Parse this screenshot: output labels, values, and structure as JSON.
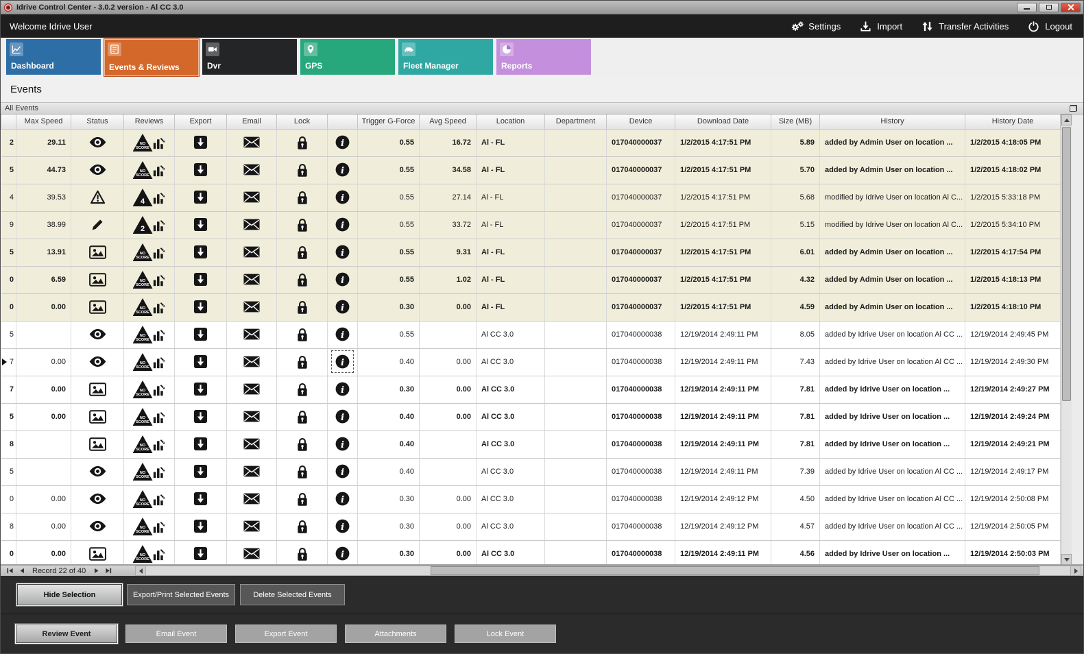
{
  "window": {
    "title": "Idrive Control Center - 3.0.2 version - Al CC 3.0",
    "app_icon": "record-logo-icon"
  },
  "topbar": {
    "welcome": "Welcome Idrive User",
    "actions": [
      {
        "label": "Settings",
        "icon": "gears-icon"
      },
      {
        "label": "Import",
        "icon": "import-icon"
      },
      {
        "label": "Transfer Activities",
        "icon": "transfer-icon"
      },
      {
        "label": "Logout",
        "icon": "power-icon"
      }
    ]
  },
  "tabs": [
    {
      "label": "Dashboard",
      "color": "#2d6ea6",
      "icon": "line-chart-icon",
      "active": false
    },
    {
      "label": "Events & Reviews",
      "color": "#d4682a",
      "icon": "checklist-icon",
      "active": true
    },
    {
      "label": "Dvr",
      "color": "#232526",
      "icon": "dvr-icon",
      "active": false
    },
    {
      "label": "GPS",
      "color": "#27a77c",
      "icon": "map-pin-icon",
      "active": false
    },
    {
      "label": "Fleet Manager",
      "color": "#2fa7a3",
      "icon": "car-icon",
      "active": false
    },
    {
      "label": "Reports",
      "color": "#c48fdc",
      "icon": "pie-chart-icon",
      "active": false
    }
  ],
  "page": {
    "title": "Events",
    "panel_title": "All Events"
  },
  "table": {
    "columns": [
      "",
      "Max Speed",
      "Status",
      "Reviews",
      "Export",
      "Email",
      "Lock",
      "",
      "Trigger G-Force",
      "Avg Speed",
      "Location",
      "Department",
      "Device",
      "Download Date",
      "Size (MB)",
      "History",
      "History Date"
    ],
    "rows": [
      {
        "edge": "2",
        "max_speed": "29.11",
        "status": "eye",
        "review": "NO SCORE",
        "trigger": "0.55",
        "avg_speed": "16.72",
        "location": "Al - FL",
        "department": "",
        "device": "017040000037",
        "download_date": "1/2/2015 4:17:51 PM",
        "size": "5.89",
        "history": "added by Admin User on location ...",
        "history_date": "1/2/2015 4:18:05 PM",
        "bold": true,
        "beige": true,
        "selected": false
      },
      {
        "edge": "5",
        "max_speed": "44.73",
        "status": "eye",
        "review": "NO SCORE",
        "trigger": "0.55",
        "avg_speed": "34.58",
        "location": "Al - FL",
        "department": "",
        "device": "017040000037",
        "download_date": "1/2/2015 4:17:51 PM",
        "size": "5.70",
        "history": "added by Admin User on location ...",
        "history_date": "1/2/2015 4:18:02 PM",
        "bold": true,
        "beige": true,
        "selected": false
      },
      {
        "edge": "4",
        "max_speed": "39.53",
        "status": "warning",
        "review": "4",
        "trigger": "0.55",
        "avg_speed": "27.14",
        "location": "Al - FL",
        "department": "",
        "device": "017040000037",
        "download_date": "1/2/2015 4:17:51 PM",
        "size": "5.68",
        "history": "modified by Idrive User on location Al C...",
        "history_date": "1/2/2015 5:33:18 PM",
        "bold": false,
        "beige": true,
        "selected": false
      },
      {
        "edge": "9",
        "max_speed": "38.99",
        "status": "pencil",
        "review": "2",
        "trigger": "0.55",
        "avg_speed": "33.72",
        "location": "Al - FL",
        "department": "",
        "device": "017040000037",
        "download_date": "1/2/2015 4:17:51 PM",
        "size": "5.15",
        "history": "modified by Idrive User on location Al C...",
        "history_date": "1/2/2015 5:34:10 PM",
        "bold": false,
        "beige": true,
        "selected": false
      },
      {
        "edge": "5",
        "max_speed": "13.91",
        "status": "image",
        "review": "NO SCORE",
        "trigger": "0.55",
        "avg_speed": "9.31",
        "location": "Al - FL",
        "department": "",
        "device": "017040000037",
        "download_date": "1/2/2015 4:17:51 PM",
        "size": "6.01",
        "history": "added by Admin User on location ...",
        "history_date": "1/2/2015 4:17:54 PM",
        "bold": true,
        "beige": true,
        "selected": false
      },
      {
        "edge": "0",
        "max_speed": "6.59",
        "status": "image",
        "review": "NO SCORE",
        "trigger": "0.55",
        "avg_speed": "1.02",
        "location": "Al - FL",
        "department": "",
        "device": "017040000037",
        "download_date": "1/2/2015 4:17:51 PM",
        "size": "4.32",
        "history": "added by Admin User on location ...",
        "history_date": "1/2/2015 4:18:13 PM",
        "bold": true,
        "beige": true,
        "selected": false
      },
      {
        "edge": "0",
        "max_speed": "0.00",
        "status": "image",
        "review": "NO SCORE",
        "trigger": "0.30",
        "avg_speed": "0.00",
        "location": "Al - FL",
        "department": "",
        "device": "017040000037",
        "download_date": "1/2/2015 4:17:51 PM",
        "size": "4.59",
        "history": "added by Admin User on location ...",
        "history_date": "1/2/2015 4:18:10 PM",
        "bold": true,
        "beige": true,
        "selected": false
      },
      {
        "edge": "5",
        "max_speed": "",
        "status": "eye",
        "review": "NO SCORE",
        "trigger": "0.55",
        "avg_speed": "",
        "location": "Al CC 3.0",
        "department": "",
        "device": "017040000038",
        "download_date": "12/19/2014 2:49:11 PM",
        "size": "8.05",
        "history": "added by Idrive User on location Al CC ...",
        "history_date": "12/19/2014 2:49:45 PM",
        "bold": false,
        "beige": false,
        "selected": false
      },
      {
        "edge": "7",
        "max_speed": "0.00",
        "status": "eye",
        "review": "NO SCORE",
        "trigger": "0.40",
        "avg_speed": "0.00",
        "location": "Al CC 3.0",
        "department": "",
        "device": "017040000038",
        "download_date": "12/19/2014 2:49:11 PM",
        "size": "7.43",
        "history": "added by Idrive User on location Al CC ...",
        "history_date": "12/19/2014 2:49:30 PM",
        "bold": false,
        "beige": false,
        "selected": true
      },
      {
        "edge": "7",
        "max_speed": "0.00",
        "status": "image",
        "review": "NO SCORE",
        "trigger": "0.30",
        "avg_speed": "0.00",
        "location": "Al CC 3.0",
        "department": "",
        "device": "017040000038",
        "download_date": "12/19/2014 2:49:11 PM",
        "size": "7.81",
        "history": "added by Idrive User on location ...",
        "history_date": "12/19/2014 2:49:27 PM",
        "bold": true,
        "beige": false,
        "selected": false
      },
      {
        "edge": "5",
        "max_speed": "0.00",
        "status": "image",
        "review": "NO SCORE",
        "trigger": "0.40",
        "avg_speed": "0.00",
        "location": "Al CC 3.0",
        "department": "",
        "device": "017040000038",
        "download_date": "12/19/2014 2:49:11 PM",
        "size": "7.81",
        "history": "added by Idrive User on location ...",
        "history_date": "12/19/2014 2:49:24 PM",
        "bold": true,
        "beige": false,
        "selected": false
      },
      {
        "edge": "8",
        "max_speed": "",
        "status": "image",
        "review": "NO SCORE",
        "trigger": "0.40",
        "avg_speed": "",
        "location": "Al CC 3.0",
        "department": "",
        "device": "017040000038",
        "download_date": "12/19/2014 2:49:11 PM",
        "size": "7.81",
        "history": "added by Idrive User on location ...",
        "history_date": "12/19/2014 2:49:21 PM",
        "bold": true,
        "beige": false,
        "selected": false
      },
      {
        "edge": "5",
        "max_speed": "",
        "status": "eye",
        "review": "NO SCORE",
        "trigger": "0.40",
        "avg_speed": "",
        "location": "Al CC 3.0",
        "department": "",
        "device": "017040000038",
        "download_date": "12/19/2014 2:49:11 PM",
        "size": "7.39",
        "history": "added by Idrive User on location Al CC ...",
        "history_date": "12/19/2014 2:49:17 PM",
        "bold": false,
        "beige": false,
        "selected": false
      },
      {
        "edge": "0",
        "max_speed": "0.00",
        "status": "eye",
        "review": "NO SCORE",
        "trigger": "0.30",
        "avg_speed": "0.00",
        "location": "Al CC 3.0",
        "department": "",
        "device": "017040000038",
        "download_date": "12/19/2014 2:49:12 PM",
        "size": "4.50",
        "history": "added by Idrive User on location Al CC ...",
        "history_date": "12/19/2014 2:50:08 PM",
        "bold": false,
        "beige": false,
        "selected": false
      },
      {
        "edge": "8",
        "max_speed": "0.00",
        "status": "eye",
        "review": "NO SCORE",
        "trigger": "0.30",
        "avg_speed": "0.00",
        "location": "Al CC 3.0",
        "department": "",
        "device": "017040000038",
        "download_date": "12/19/2014 2:49:12 PM",
        "size": "4.57",
        "history": "added by Idrive User on location Al CC ...",
        "history_date": "12/19/2014 2:50:05 PM",
        "bold": false,
        "beige": false,
        "selected": false
      },
      {
        "edge": "0",
        "max_speed": "0.00",
        "status": "image",
        "review": "NO SCORE",
        "trigger": "0.30",
        "avg_speed": "0.00",
        "location": "Al CC 3.0",
        "department": "",
        "device": "017040000038",
        "download_date": "12/19/2014 2:49:11 PM",
        "size": "4.56",
        "history": "added by Idrive User on location ...",
        "history_date": "12/19/2014 2:50:03 PM",
        "bold": true,
        "beige": false,
        "selected": false
      }
    ]
  },
  "pagination": {
    "record_text": "Record 22 of 40"
  },
  "footer": {
    "row1": [
      "Hide Selection",
      "Export/Print Selected Events",
      "Delete Selected  Events"
    ],
    "row2": [
      "Review Event",
      "Email Event",
      "Export Event",
      "Attachments",
      "Lock Event"
    ]
  }
}
